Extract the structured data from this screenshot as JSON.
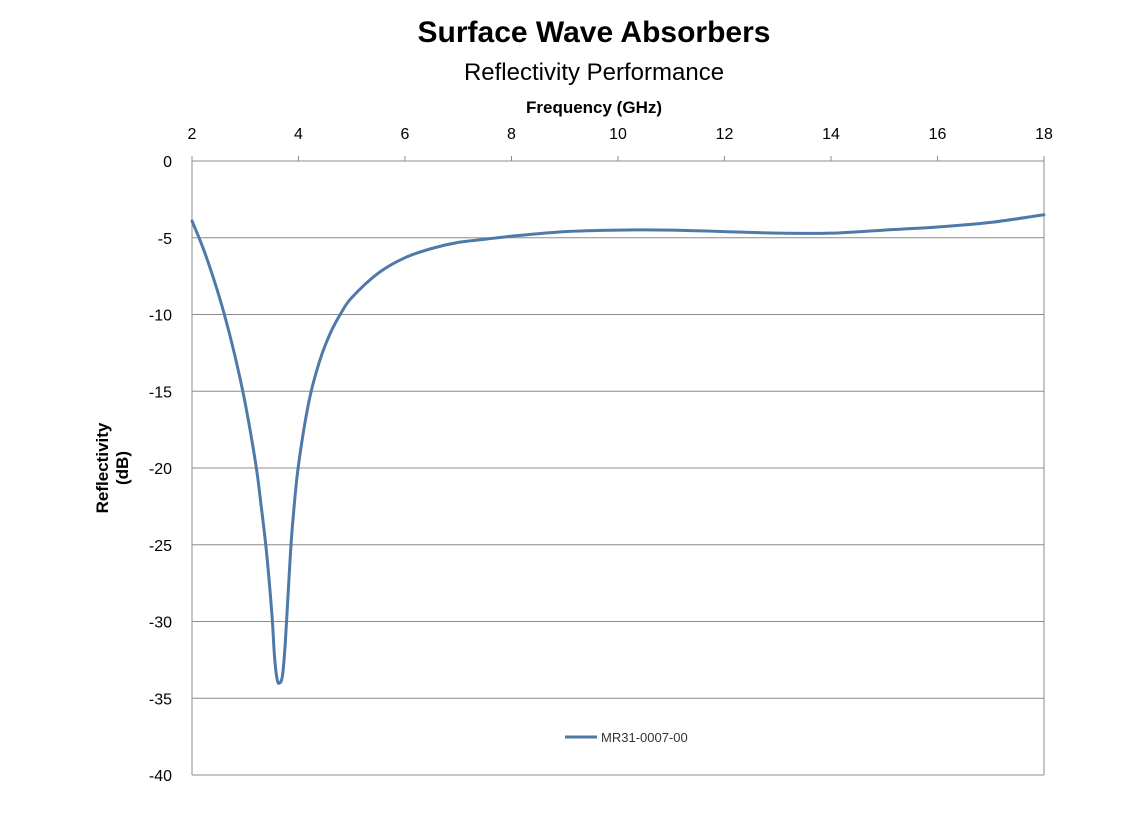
{
  "chart_data": {
    "type": "line",
    "title": "Surface Wave Absorbers",
    "subtitle": "Reflectivity Performance",
    "xlabel": "Frequency (GHz)",
    "ylabel_lines": [
      "Reflectivity",
      "(dB)"
    ],
    "xlim": [
      2,
      18
    ],
    "ylim": [
      -40,
      0
    ],
    "x_ticks": [
      "2",
      "4",
      "6",
      "8",
      "10",
      "12",
      "14",
      "16",
      "18"
    ],
    "y_ticks": [
      "0",
      "-5",
      "-10",
      "-15",
      "-20",
      "-25",
      "-30",
      "-35",
      "-40"
    ],
    "x_axis_position": "top",
    "grid": "horizontal",
    "legend_position": "bottom-center",
    "series": [
      {
        "name": "MR31-0007-00",
        "color": "#4f79a8",
        "x": [
          2.0,
          2.2,
          2.4,
          2.6,
          2.8,
          3.0,
          3.2,
          3.3,
          3.4,
          3.5,
          3.55,
          3.6,
          3.65,
          3.7,
          3.75,
          3.8,
          3.85,
          3.9,
          4.0,
          4.2,
          4.4,
          4.6,
          4.8,
          5.0,
          5.5,
          6.0,
          6.5,
          7.0,
          7.5,
          8.0,
          9.0,
          10.0,
          11.0,
          12.0,
          13.0,
          14.0,
          15.0,
          16.0,
          17.0,
          18.0
        ],
        "values": [
          -3.9,
          -5.6,
          -7.6,
          -9.9,
          -12.6,
          -15.8,
          -19.8,
          -22.5,
          -25.5,
          -29.5,
          -32.3,
          -33.8,
          -34.0,
          -33.5,
          -31.5,
          -28.5,
          -25.5,
          -23.2,
          -19.8,
          -15.6,
          -13.0,
          -11.2,
          -9.9,
          -8.9,
          -7.3,
          -6.3,
          -5.7,
          -5.3,
          -5.1,
          -4.9,
          -4.6,
          -4.5,
          -4.5,
          -4.6,
          -4.7,
          -4.7,
          -4.5,
          -4.3,
          -4.0,
          -3.5
        ]
      }
    ]
  }
}
